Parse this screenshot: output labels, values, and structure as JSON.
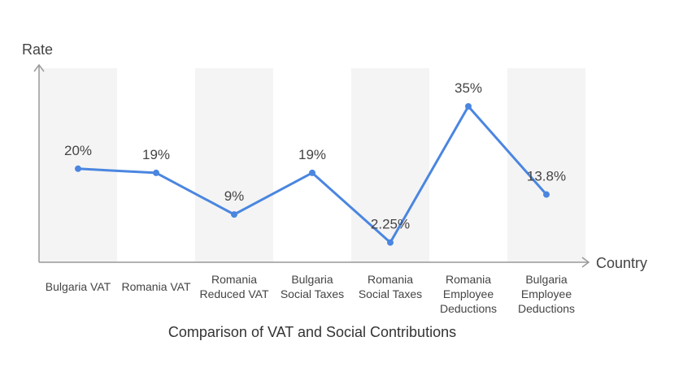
{
  "chart_data": {
    "type": "line",
    "title": "Comparison of VAT and Social Contributions",
    "xlabel": "Country",
    "ylabel": "Rate",
    "categories": [
      [
        "Bulgaria VAT"
      ],
      [
        "Romania VAT"
      ],
      [
        "Romania",
        "Reduced VAT"
      ],
      [
        "Bulgaria",
        "Social Taxes"
      ],
      [
        "Romania",
        "Social Taxes"
      ],
      [
        "Romania",
        "Employee",
        "Deductions"
      ],
      [
        "Bulgaria",
        "Employee",
        "Deductions"
      ]
    ],
    "values": [
      20,
      19,
      9,
      19,
      2.25,
      35,
      13.8
    ],
    "value_labels": [
      "20%",
      "19%",
      "9%",
      "19%",
      "2.25%",
      "35%",
      "13.8%"
    ],
    "ylim": [
      -2.5,
      35
    ],
    "colors": {
      "line": "#4a86e0",
      "band": "#f4f4f4",
      "axis": "#999999"
    }
  }
}
